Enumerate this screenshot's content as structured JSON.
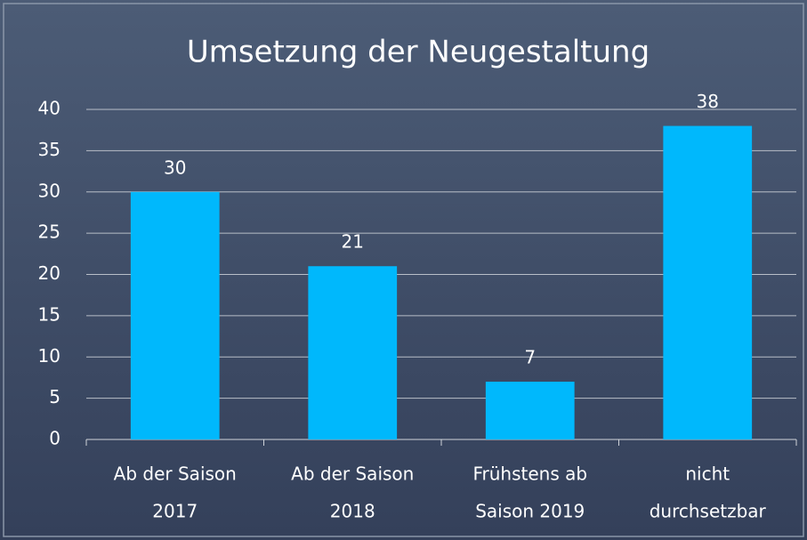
{
  "chart_data": {
    "type": "bar",
    "title": "Umsetzung der Neugestaltung",
    "categories": [
      [
        "Ab der Saison",
        "2017"
      ],
      [
        "Ab der Saison",
        "2018"
      ],
      [
        "Frühstens ab",
        "Saison 2019"
      ],
      [
        "nicht",
        "durchsetzbar"
      ]
    ],
    "values": [
      30,
      21,
      7,
      38
    ],
    "color": "#00b8fc",
    "ylim": [
      0,
      40
    ],
    "yticks": [
      0,
      5,
      10,
      15,
      20,
      25,
      30,
      35,
      40
    ],
    "grid": true
  }
}
